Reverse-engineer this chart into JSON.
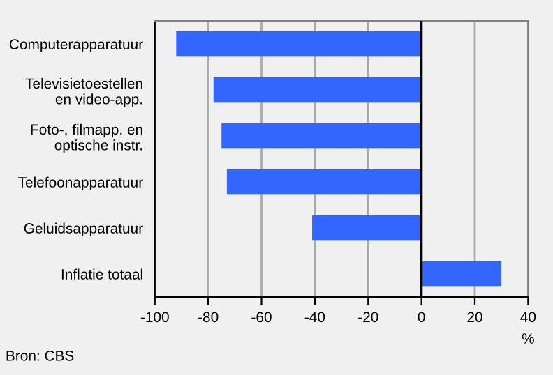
{
  "chart_data": {
    "type": "bar",
    "orientation": "horizontal",
    "categories": [
      "Computerapparatuur",
      "Televisietoestellen\nen video-app.",
      "Foto-, filmapp. en\noptische instr.",
      "Telefoonapparatuur",
      "Geluidsapparatuur",
      "Inflatie totaal"
    ],
    "values": [
      -92,
      -78,
      -75,
      -73,
      -41,
      30
    ],
    "color": "#3366ff",
    "xlim": [
      -100,
      40
    ],
    "xticks": [
      -100,
      -80,
      -60,
      -40,
      -20,
      0,
      20,
      40
    ],
    "xlabel": "%",
    "grid": "x",
    "legend": false,
    "ref_lines": [
      {
        "axis": "x",
        "value": 0,
        "color": "#000000"
      }
    ],
    "annotations": [
      "Bron: CBS"
    ]
  }
}
